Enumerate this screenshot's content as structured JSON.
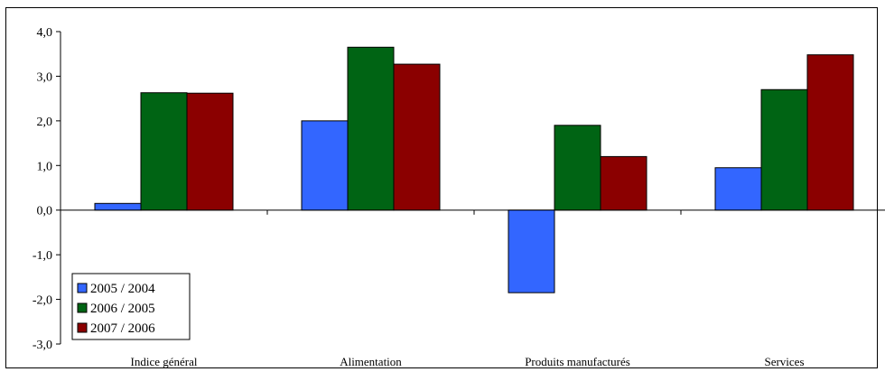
{
  "chart_data": {
    "type": "bar",
    "categories": [
      "Indice général",
      "Alimentation",
      "Produits manufacturés",
      "Services"
    ],
    "series": [
      {
        "name": "2005 / 2004",
        "values": [
          0.15,
          2.0,
          -1.85,
          0.95
        ],
        "color": "#3366FF"
      },
      {
        "name": "2006 / 2005",
        "values": [
          2.63,
          3.65,
          1.9,
          2.7
        ],
        "color": "#006414"
      },
      {
        "name": "2007 / 2006",
        "values": [
          2.62,
          3.27,
          1.2,
          3.48
        ],
        "color": "#8B0000"
      }
    ],
    "ylim": [
      -3.0,
      4.0
    ],
    "yticks": [
      4.0,
      3.0,
      2.0,
      1.0,
      0.0,
      -1.0,
      -2.0,
      -3.0
    ],
    "ytick_labels": [
      "4,0",
      "3,0",
      "2,0",
      "1,0",
      "0,0",
      "-1,0",
      "-2,0",
      "-3,0"
    ],
    "grid": false,
    "legend_position": "bottom-left"
  }
}
